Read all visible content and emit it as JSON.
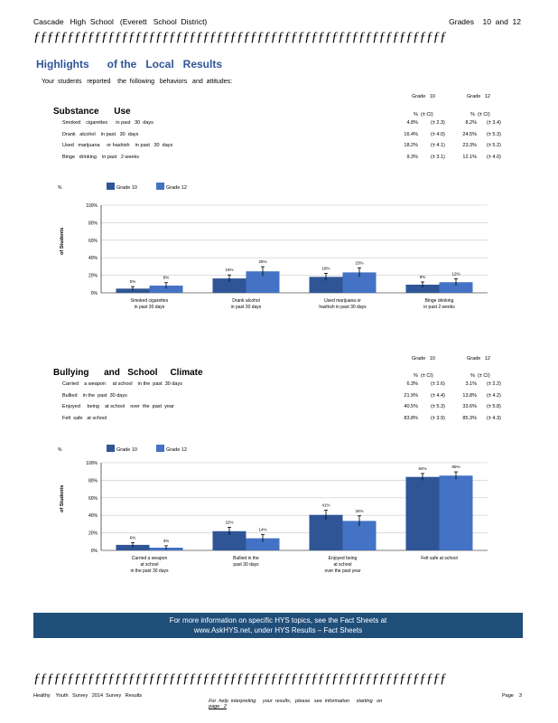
{
  "header": {
    "school": "Cascade   High  School   (Everett   School  District)",
    "grades": "Grades    10  and  12",
    "separator": "ƒƒƒƒƒƒƒƒƒƒƒƒƒƒƒƒƒƒƒƒƒƒƒƒƒƒƒƒƒƒƒƒƒƒƒƒƒƒƒƒƒƒƒƒƒƒƒƒƒƒƒƒƒƒƒƒƒƒƒƒƒ"
  },
  "page_title": "Highlights      of the   Local   Results",
  "intro": "Your  students   reported    the  following   behaviors   and  attitudes:",
  "substance": {
    "heading": "Substance      Use",
    "col_grade10": "Grade   10",
    "col_grade12": "Grade   12",
    "ci_label": "%  (± CI)",
    "rows": [
      {
        "label": "Smoked    cigarettes      in past   30  days",
        "g10": "4.8%",
        "g10ci": "(± 2.3)",
        "g12": "8.2%",
        "g12ci": "(± 3.4)"
      },
      {
        "label": "Drank   alcohol    in past   30  days",
        "g10": "16.4%",
        "g10ci": "(± 4.0)",
        "g12": "24.5%",
        "g12ci": "(± 5.3)"
      },
      {
        "label": "Used   marijuana     or hashish    in past   30  days",
        "g10": "18.2%",
        "g10ci": "(± 4.1)",
        "g12": "23.3%",
        "g12ci": "(± 5.2)"
      },
      {
        "label": "Binge   drinking    in past   2 weeks",
        "g10": "9.3%",
        "g10ci": "(± 3.1)",
        "g12": "12.1%",
        "g12ci": "(± 4.0)"
      }
    ]
  },
  "bullying": {
    "heading": "Bullying      and   School     Climate",
    "col_grade10": "Grade   10",
    "col_grade12": "Grade   12",
    "ci_label": "%  (± CI)",
    "rows": [
      {
        "label": "Carried    a weapon     at school    in the  past  30 days",
        "g10": "6.3%",
        "g10ci": "(± 2.6)",
        "g12": "3.1%",
        "g12ci": "(± 2.2)"
      },
      {
        "label": "Bullied    in the  past  30 days",
        "g10": "21.9%",
        "g10ci": "(± 4.4)",
        "g12": "13.8%",
        "g12ci": "(± 4.2)"
      },
      {
        "label": "Enjoyed     being    at school    over  the  past  year",
        "g10": "40.5%",
        "g10ci": "(± 5.3)",
        "g12": "33.6%",
        "g12ci": "(± 5.8)"
      },
      {
        "label": "Felt  safe   at school",
        "g10": "83.8%",
        "g10ci": "(± 3.9)",
        "g12": "85.3%",
        "g12ci": "(± 4.3)"
      }
    ]
  },
  "chart_data": [
    {
      "type": "bar",
      "legend_marker": "%",
      "legend": [
        "Grade   10",
        "Grade   12"
      ],
      "ylabel": "of Students",
      "yticks": [
        "100%",
        "80%",
        "60%",
        "40%",
        "20%",
        "0%"
      ],
      "ylim": [
        0,
        100
      ],
      "grid": true,
      "categories": [
        [
          "Smoked    cigarettes",
          "in past   30  days"
        ],
        [
          "Drank   alcohol",
          "in past   30  days"
        ],
        [
          "Used    marijuana     or",
          "hashish    in past   30  days"
        ],
        [
          "Binge   drinking",
          "in past   2 weeks"
        ]
      ],
      "series": [
        {
          "name": "Grade   10",
          "values": [
            4.8,
            16.4,
            18.2,
            9.3
          ],
          "errors": [
            2.3,
            4.0,
            4.1,
            3.1
          ],
          "labels": [
            "5%",
            "16%",
            "18%",
            "9%"
          ],
          "color": "#2f5597"
        },
        {
          "name": "Grade   12",
          "values": [
            8.2,
            24.5,
            23.3,
            12.1
          ],
          "errors": [
            3.4,
            5.3,
            5.2,
            4.0
          ],
          "labels": [
            "8%",
            "25%",
            "23%",
            "12%"
          ],
          "color": "#4472c4"
        }
      ]
    },
    {
      "type": "bar",
      "legend_marker": "%",
      "legend": [
        "Grade   10",
        "Grade   12"
      ],
      "ylabel": "of Students",
      "yticks": [
        "100%",
        "80%",
        "60%",
        "40%",
        "20%",
        "0%"
      ],
      "ylim": [
        0,
        100
      ],
      "grid": true,
      "categories": [
        [
          "Carried    a weapon",
          "at school",
          "in the  past  30 days"
        ],
        [
          "Bullied    in the",
          "past   30 days"
        ],
        [
          "Enjoyed      being",
          "at school",
          "over  the  past   year"
        ],
        [
          "Felt  safe   at school"
        ]
      ],
      "series": [
        {
          "name": "Grade   10",
          "values": [
            6.3,
            21.9,
            40.5,
            83.8
          ],
          "errors": [
            2.6,
            4.4,
            5.3,
            3.9
          ],
          "labels": [
            "6%",
            "22%",
            "41%",
            "84%"
          ],
          "color": "#2f5597"
        },
        {
          "name": "Grade   12",
          "values": [
            3.1,
            13.8,
            33.6,
            85.3
          ],
          "errors": [
            2.2,
            4.2,
            5.8,
            4.3
          ],
          "labels": [
            "3%",
            "14%",
            "34%",
            "85%"
          ],
          "color": "#4472c4"
        }
      ]
    }
  ],
  "banner": {
    "line1": "For  more   information     on specific   HYS  topics,   see  the  Fact  Sheets    at",
    "line2": "www.AskHYS.net,           under   HYS  Results    – Fact   Sheets"
  },
  "footer": {
    "left": "Healthy    Youth   Survey   2014  Survey   Results",
    "middle_prefix": "For  help  interpreting     your  results,   please   see  information     starting   on",
    "middle_link": "page   2",
    "right": "Page    3"
  }
}
